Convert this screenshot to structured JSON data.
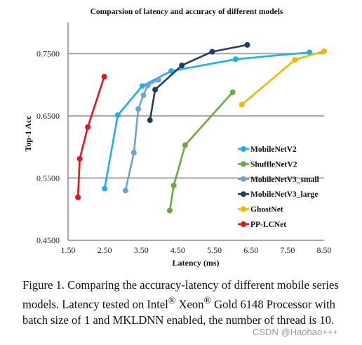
{
  "chart_data": {
    "type": "line",
    "title": "Comparsion of latency and accuracy of different models",
    "xlabel": "Latency (ms)",
    "ylabel": "Top-1 Acc",
    "xlim": [
      1.5,
      8.5
    ],
    "ylim": [
      0.45,
      0.8
    ],
    "xticks": [
      "1.50",
      "2.50",
      "3.50",
      "4.50",
      "5.50",
      "6.50",
      "7.50",
      "8.50"
    ],
    "xtick_values": [
      1.5,
      2.5,
      3.5,
      4.5,
      5.5,
      6.5,
      7.5,
      8.5
    ],
    "yticks": [
      "0.4500",
      "0.5500",
      "0.6500",
      "0.7500"
    ],
    "ytick_values": [
      0.45,
      0.55,
      0.65,
      0.75
    ],
    "grid": "horizontal",
    "legend_position": "right",
    "series": [
      {
        "name": "MobileNetV2",
        "color": "#1bb0e6",
        "points": [
          [
            2.5,
            0.533
          ],
          [
            2.86,
            0.651
          ],
          [
            3.53,
            0.698
          ],
          [
            4.32,
            0.722
          ],
          [
            6.08,
            0.741
          ],
          [
            8.1,
            0.752
          ]
        ]
      },
      {
        "name": "ShuffleNetV2",
        "color": "#6aaa40",
        "points": [
          [
            4.28,
            0.498
          ],
          [
            4.39,
            0.538
          ],
          [
            4.7,
            0.603
          ],
          [
            6.0,
            0.688
          ]
        ]
      },
      {
        "name": "MobileNetV3_small",
        "color": "#6ea2d8",
        "points": [
          [
            3.07,
            0.53
          ],
          [
            3.3,
            0.591
          ],
          [
            3.42,
            0.661
          ],
          [
            3.56,
            0.683
          ],
          [
            3.68,
            0.699
          ],
          [
            3.97,
            0.708
          ]
        ]
      },
      {
        "name": "MobileNetV3_large",
        "color": "#233c62",
        "points": [
          [
            3.74,
            0.643
          ],
          [
            3.88,
            0.692
          ],
          [
            4.61,
            0.731
          ],
          [
            5.44,
            0.753
          ],
          [
            6.4,
            0.764
          ]
        ]
      },
      {
        "name": "GhostNet",
        "color": "#f0b800",
        "points": [
          [
            6.25,
            0.668
          ],
          [
            7.7,
            0.74
          ],
          [
            8.5,
            0.754
          ]
        ]
      },
      {
        "name": "PP-LCNet",
        "color": "#e8141a",
        "points": [
          [
            1.77,
            0.519
          ],
          [
            1.82,
            0.581
          ],
          [
            2.04,
            0.632
          ],
          [
            2.49,
            0.713
          ]
        ]
      }
    ]
  },
  "caption": {
    "text_before_1": "Figure 1. Comparing the accuracy-latency of different mobile series models. Latency tested on Intel",
    "reg_1": "®",
    "text_before_2": " Xeon",
    "reg_2": "®",
    "text_after": " Gold 6148 Processor with batch size of 1 and MKLDNN enabled, the number of thread is 10."
  },
  "watermark": "CSDN @Haohao+++"
}
